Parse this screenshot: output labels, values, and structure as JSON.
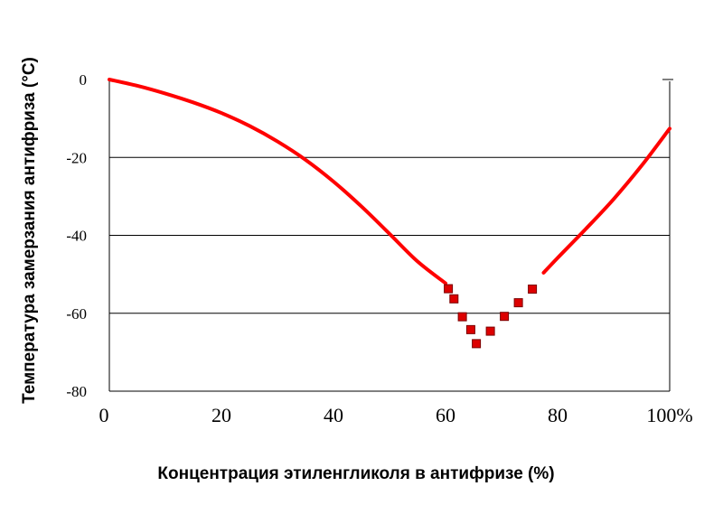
{
  "chart_data": {
    "type": "line",
    "xlabel": "Концентрация этиленгликоля в антифризе (%)",
    "ylabel": "Температура замерзания антифриза (°C)",
    "xlim": [
      0,
      100
    ],
    "ylim": [
      -80,
      0
    ],
    "x_ticks": [
      {
        "value": 0,
        "label": "0"
      },
      {
        "value": 20,
        "label": "20"
      },
      {
        "value": 40,
        "label": "40"
      },
      {
        "value": 60,
        "label": "60"
      },
      {
        "value": 80,
        "label": "80"
      },
      {
        "value": 100,
        "label": "100%"
      }
    ],
    "y_ticks": [
      {
        "value": 0,
        "label": "0"
      },
      {
        "value": -20,
        "label": "-20"
      },
      {
        "value": -40,
        "label": "-40"
      },
      {
        "value": -60,
        "label": "-60"
      },
      {
        "value": -80,
        "label": "-80"
      }
    ],
    "grid": "horizontal",
    "line_color": "#ff0000",
    "marker_color": "#dd0000",
    "series": [
      {
        "style": "line",
        "x": [
          0,
          5,
          10,
          15,
          20,
          25,
          30,
          35,
          40,
          45,
          50,
          55,
          60
        ],
        "y": [
          0,
          -1.6,
          -3.6,
          -5.9,
          -8.6,
          -11.9,
          -15.9,
          -20.6,
          -26.2,
          -32.6,
          -39.6,
          -46.7,
          -52.3
        ]
      },
      {
        "style": "line",
        "x": [
          77.5,
          80,
          85,
          90,
          95,
          100
        ],
        "y": [
          -49.6,
          -45.8,
          -38.4,
          -30.7,
          -22.1,
          -12.6
        ]
      },
      {
        "style": "markers",
        "x": [
          60.5,
          61.5,
          63,
          64.5,
          65.5,
          68,
          70.5,
          73,
          75.5
        ],
        "y": [
          -53.7,
          -56.3,
          -60.9,
          -64.2,
          -67.8,
          -64.6,
          -60.8,
          -57.3,
          -53.8
        ]
      }
    ]
  }
}
